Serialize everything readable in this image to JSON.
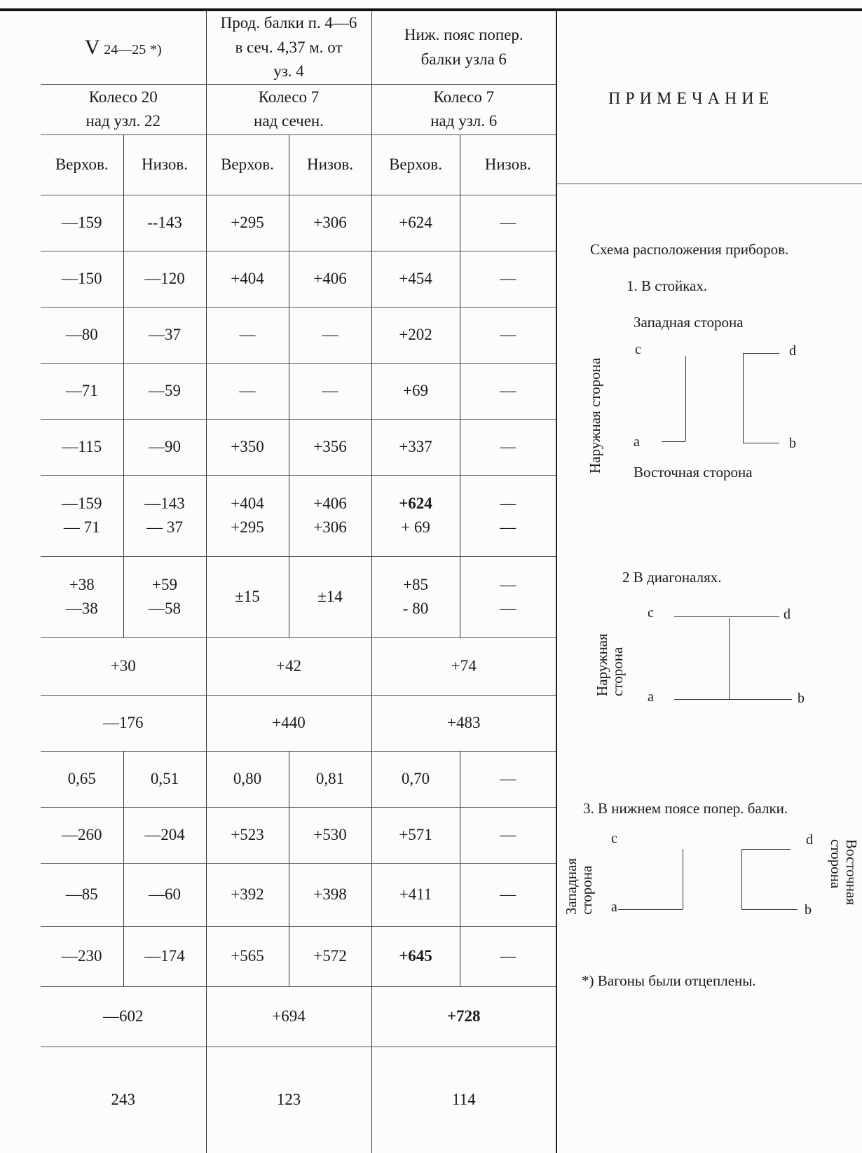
{
  "header": {
    "v_main": "V",
    "v_sub": "24—25",
    "v_mark": "*)",
    "col2_title": [
      "Прод. балки п. 4—6",
      "в сеч. 4,37 м. от",
      "уз. 4"
    ],
    "col3_title": [
      "Ниж. пояс попер.",
      "балки узла 6"
    ],
    "row2_col1": [
      "Колесо 20",
      "над узл. 22"
    ],
    "row2_col2": [
      "Колесо 7",
      "над сечен."
    ],
    "row2_col3": [
      "Колесо 7",
      "над узл. 6"
    ],
    "sub_labels": [
      "Верхов.",
      "Низов.",
      "Верхов.",
      "Низов.",
      "Верхов.",
      "Низов."
    ]
  },
  "rows": [
    [
      "—159",
      "--143",
      "+295",
      "+306",
      "+624",
      "—"
    ],
    [
      "—150",
      "—120",
      "+404",
      "+406",
      "+454",
      "—"
    ],
    [
      "—80",
      "—37",
      "—",
      "—",
      "+202",
      "—"
    ],
    [
      "—71",
      "—59",
      "—",
      "—",
      "+69",
      "—"
    ],
    [
      "—115",
      "—90",
      "+350",
      "+356",
      "+337",
      "—"
    ]
  ],
  "double_rows": [
    [
      [
        "—159",
        "— 71"
      ],
      [
        "—143",
        "— 37"
      ],
      [
        "+404",
        "+295"
      ],
      [
        "+406",
        "+306"
      ],
      [
        "+624",
        "+ 69"
      ],
      [
        "—",
        "—"
      ]
    ],
    [
      [
        "+38",
        "—38"
      ],
      [
        "+59",
        "—58"
      ],
      [
        "±15"
      ],
      [
        "±14"
      ],
      [
        "+85",
        "- 80"
      ],
      [
        "—",
        "—"
      ]
    ]
  ],
  "merged_rows": [
    [
      "+30",
      "+42",
      "+74"
    ],
    [
      "—176",
      "+440",
      "+483"
    ]
  ],
  "rows2": [
    [
      "0,65",
      "0,51",
      "0,80",
      "0,81",
      "0,70",
      "—"
    ],
    [
      "—260",
      "—204",
      "+523",
      "+530",
      "+571",
      "—"
    ],
    [
      "—85",
      "—60",
      "+392",
      "+398",
      "+411",
      "—"
    ],
    [
      "—230",
      "—174",
      "+565",
      "+572",
      "+645",
      "—"
    ]
  ],
  "merged_rows2": [
    [
      "—602",
      "+694",
      "+728"
    ],
    [
      "243",
      "123",
      "114"
    ]
  ],
  "notes": {
    "title": "ПРИМЕЧАНИЕ",
    "scheme_title": "Схема расположения приборов.",
    "item1": "1. В стойках.",
    "west_side": "Западная сторона",
    "east_side": "Восточная сторона",
    "outer_side": "Наружная сторона",
    "item2": "2 В диагоналях.",
    "outer_side_a": "Наружная",
    "outer_side_b": "сторона",
    "item3": "3. В нижнем поясе попер. балки.",
    "west_a": "Западная",
    "west_b": "сторона",
    "east_a": "Восточная",
    "east_b": "сторона",
    "pt_a": "a",
    "pt_b": "b",
    "pt_c": "c",
    "pt_d": "d",
    "footnote": "*) Вагоны были отцеплены."
  }
}
